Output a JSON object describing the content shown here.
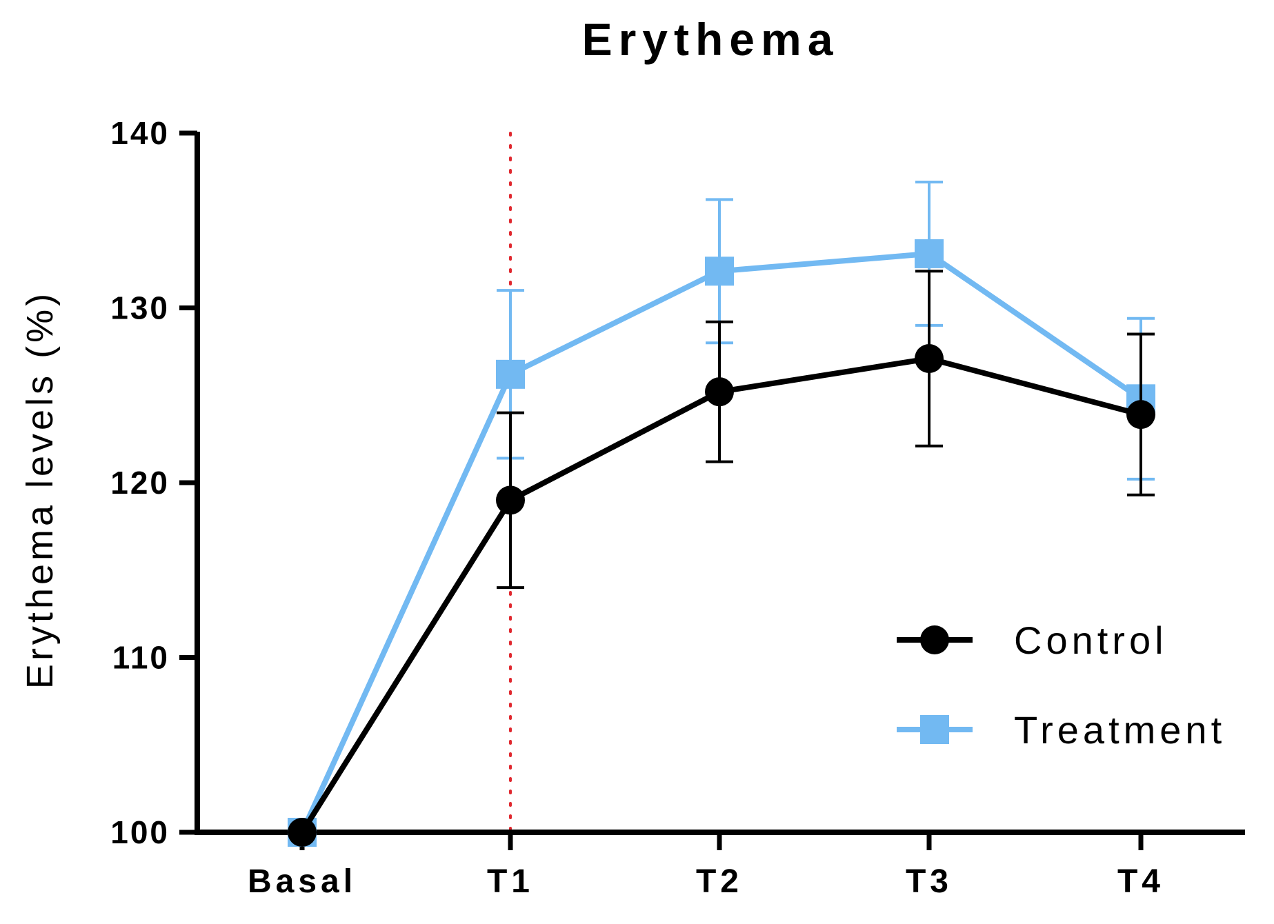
{
  "chart_data": {
    "type": "line",
    "title": "Erythema",
    "xlabel": "",
    "ylabel": "Erythema levels (%)",
    "categories": [
      "Basal",
      "T1",
      "T2",
      "T3",
      "T4"
    ],
    "ylim": [
      100,
      140
    ],
    "yticks": [
      100,
      110,
      120,
      130,
      140
    ],
    "grid": false,
    "legend_position": "bottom-right",
    "reference_line": {
      "category": "T1",
      "style": "dotted",
      "color": "#e0282f"
    },
    "series": [
      {
        "name": "Control",
        "marker": "circle",
        "color": "#000000",
        "values": [
          100,
          119,
          125.2,
          127.1,
          123.9
        ],
        "error": [
          0,
          5,
          4,
          5,
          4.6
        ]
      },
      {
        "name": "Treatment",
        "marker": "square",
        "color": "#72b9f2",
        "values": [
          100,
          126.2,
          132.1,
          133.1,
          124.8
        ],
        "error": [
          0,
          4.8,
          4.1,
          4.1,
          4.6
        ]
      }
    ]
  }
}
